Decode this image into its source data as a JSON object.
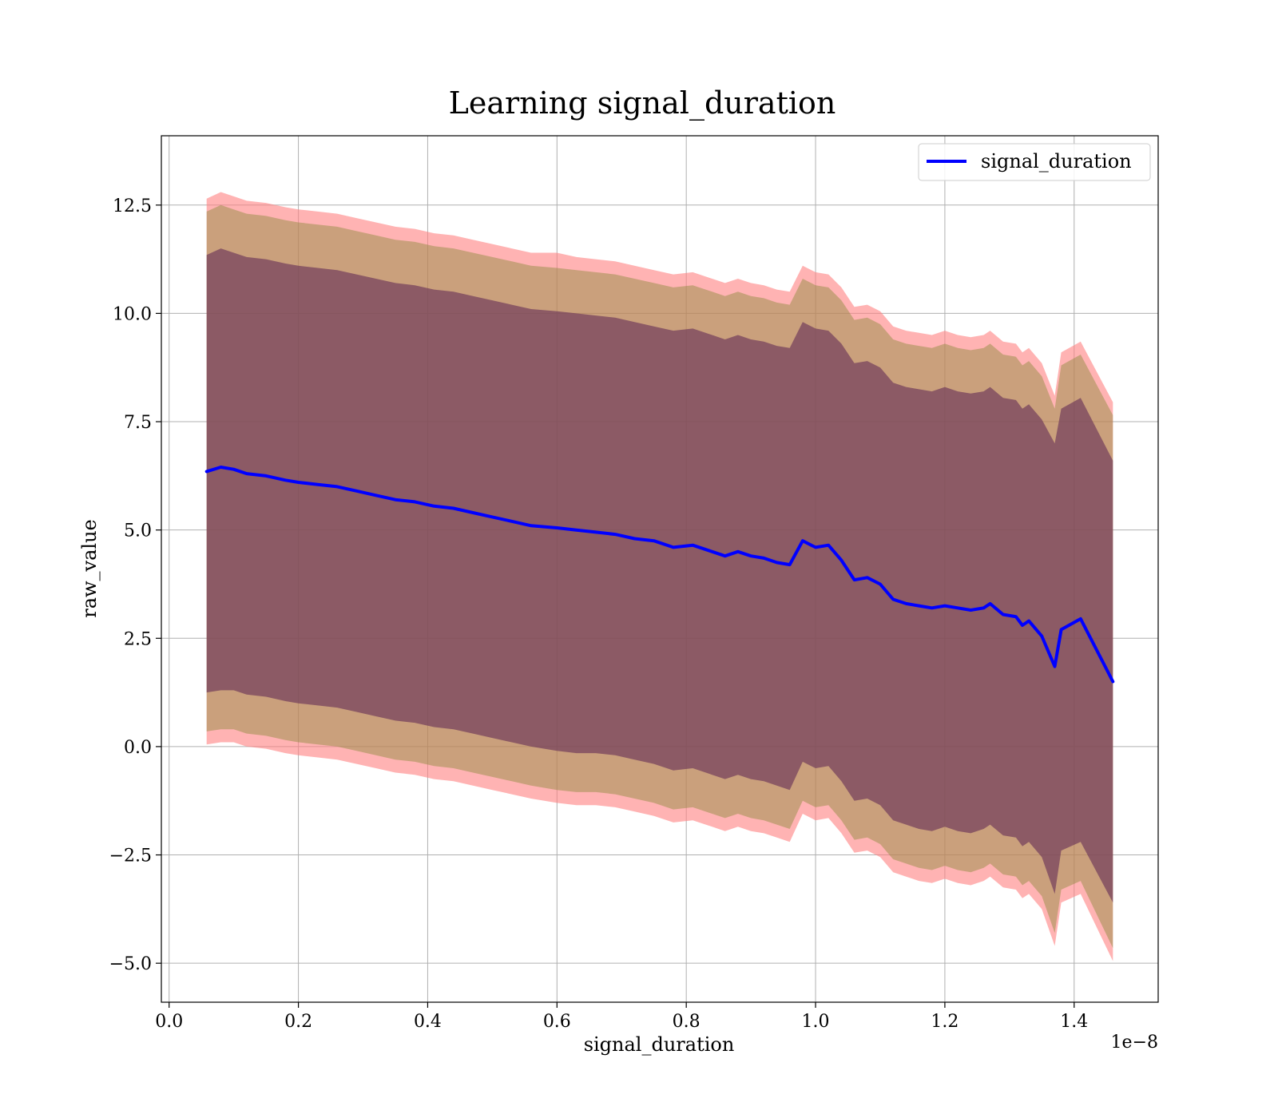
{
  "chart_data": {
    "type": "line",
    "title": "Learning signal_duration",
    "xlabel": "signal_duration",
    "ylabel": "raw_value",
    "x_offset_label": "1e−8",
    "xlim": [
      -0.012,
      1.53
    ],
    "ylim": [
      -5.9,
      14.1
    ],
    "x_ticks": [
      0.0,
      0.2,
      0.4,
      0.6,
      0.8,
      1.0,
      1.2,
      1.4
    ],
    "x_tick_labels": [
      "0.0",
      "0.2",
      "0.4",
      "0.6",
      "0.8",
      "1.0",
      "1.2",
      "1.4"
    ],
    "y_ticks": [
      12.5,
      10.0,
      7.5,
      5.0,
      2.5,
      0.0,
      -2.5,
      -5.0
    ],
    "y_tick_labels": [
      "12.5",
      "10.0",
      "7.5",
      "5.0",
      "2.5",
      "0.0",
      "−2.5",
      "−5.0"
    ],
    "grid": true,
    "legend_position": "top-right",
    "x": [
      0.058,
      0.08,
      0.1,
      0.12,
      0.15,
      0.18,
      0.2,
      0.23,
      0.26,
      0.29,
      0.32,
      0.35,
      0.38,
      0.41,
      0.44,
      0.47,
      0.5,
      0.53,
      0.56,
      0.6,
      0.63,
      0.66,
      0.69,
      0.72,
      0.75,
      0.78,
      0.81,
      0.84,
      0.86,
      0.88,
      0.9,
      0.92,
      0.94,
      0.96,
      0.98,
      1.0,
      1.02,
      1.04,
      1.06,
      1.08,
      1.1,
      1.12,
      1.14,
      1.16,
      1.18,
      1.2,
      1.22,
      1.24,
      1.26,
      1.27,
      1.29,
      1.31,
      1.32,
      1.33,
      1.35,
      1.37,
      1.38,
      1.41,
      1.46
    ],
    "series": [
      {
        "name": "signal_duration",
        "color": "#0000ff",
        "values": [
          6.35,
          6.45,
          6.4,
          6.3,
          6.25,
          6.15,
          6.1,
          6.05,
          6.0,
          5.9,
          5.8,
          5.7,
          5.65,
          5.55,
          5.5,
          5.4,
          5.3,
          5.2,
          5.1,
          5.05,
          5.0,
          4.95,
          4.9,
          4.8,
          4.75,
          4.6,
          4.65,
          4.5,
          4.4,
          4.5,
          4.4,
          4.35,
          4.25,
          4.2,
          4.75,
          4.6,
          4.65,
          4.3,
          3.85,
          3.9,
          3.75,
          3.4,
          3.3,
          3.25,
          3.2,
          3.25,
          3.2,
          3.15,
          3.2,
          3.3,
          3.05,
          3.0,
          2.8,
          2.9,
          2.55,
          1.85,
          2.7,
          2.95,
          1.5
        ]
      }
    ],
    "bands": [
      {
        "fill": "#ff8080",
        "opacity": 0.6,
        "upper": [
          12.65,
          12.8,
          12.7,
          12.6,
          12.55,
          12.45,
          12.4,
          12.35,
          12.3,
          12.2,
          12.1,
          12.0,
          11.95,
          11.85,
          11.8,
          11.7,
          11.6,
          11.5,
          11.4,
          11.4,
          11.3,
          11.25,
          11.2,
          11.1,
          11.0,
          10.9,
          10.95,
          10.8,
          10.7,
          10.8,
          10.7,
          10.65,
          10.55,
          10.5,
          11.1,
          10.95,
          10.9,
          10.6,
          10.15,
          10.2,
          10.05,
          9.7,
          9.6,
          9.55,
          9.5,
          9.6,
          9.5,
          9.45,
          9.5,
          9.6,
          9.35,
          9.3,
          9.1,
          9.2,
          8.85,
          8.1,
          9.1,
          9.35,
          7.95
        ],
        "lower": [
          0.05,
          0.1,
          0.1,
          0.0,
          -0.05,
          -0.15,
          -0.2,
          -0.25,
          -0.3,
          -0.4,
          -0.5,
          -0.6,
          -0.65,
          -0.75,
          -0.8,
          -0.9,
          -1.0,
          -1.1,
          -1.2,
          -1.3,
          -1.35,
          -1.35,
          -1.4,
          -1.5,
          -1.6,
          -1.75,
          -1.7,
          -1.85,
          -1.95,
          -1.85,
          -1.95,
          -2.0,
          -2.1,
          -2.2,
          -1.55,
          -1.7,
          -1.65,
          -2.0,
          -2.45,
          -2.4,
          -2.55,
          -2.9,
          -3.0,
          -3.1,
          -3.15,
          -3.05,
          -3.15,
          -3.2,
          -3.1,
          -3.0,
          -3.25,
          -3.3,
          -3.5,
          -3.4,
          -3.75,
          -4.6,
          -3.6,
          -3.4,
          -4.95
        ]
      },
      {
        "fill": "#8a8a3a",
        "opacity": 0.45,
        "upper": [
          12.35,
          12.5,
          12.4,
          12.3,
          12.25,
          12.15,
          12.1,
          12.05,
          12.0,
          11.9,
          11.8,
          11.7,
          11.65,
          11.55,
          11.5,
          11.4,
          11.3,
          11.2,
          11.1,
          11.05,
          11.0,
          10.95,
          10.9,
          10.8,
          10.7,
          10.6,
          10.65,
          10.5,
          10.4,
          10.5,
          10.4,
          10.35,
          10.25,
          10.2,
          10.8,
          10.65,
          10.6,
          10.3,
          9.85,
          9.9,
          9.75,
          9.4,
          9.3,
          9.25,
          9.2,
          9.3,
          9.2,
          9.15,
          9.2,
          9.3,
          9.05,
          9.0,
          8.8,
          8.9,
          8.55,
          7.8,
          8.8,
          9.05,
          7.65
        ],
        "lower": [
          0.35,
          0.4,
          0.4,
          0.3,
          0.25,
          0.15,
          0.1,
          0.05,
          0.0,
          -0.1,
          -0.2,
          -0.3,
          -0.35,
          -0.45,
          -0.5,
          -0.6,
          -0.7,
          -0.8,
          -0.9,
          -1.0,
          -1.05,
          -1.05,
          -1.1,
          -1.2,
          -1.3,
          -1.45,
          -1.4,
          -1.55,
          -1.65,
          -1.55,
          -1.65,
          -1.7,
          -1.8,
          -1.9,
          -1.25,
          -1.4,
          -1.35,
          -1.7,
          -2.15,
          -2.1,
          -2.25,
          -2.6,
          -2.7,
          -2.8,
          -2.85,
          -2.75,
          -2.85,
          -2.9,
          -2.8,
          -2.7,
          -2.95,
          -3.0,
          -3.2,
          -3.1,
          -3.45,
          -4.3,
          -3.3,
          -3.1,
          -4.65
        ]
      },
      {
        "fill": "#6e3a5a",
        "opacity": 0.68,
        "upper": [
          11.35,
          11.5,
          11.4,
          11.3,
          11.25,
          11.15,
          11.1,
          11.05,
          11.0,
          10.9,
          10.8,
          10.7,
          10.65,
          10.55,
          10.5,
          10.4,
          10.3,
          10.2,
          10.1,
          10.05,
          10.0,
          9.95,
          9.9,
          9.8,
          9.7,
          9.6,
          9.65,
          9.5,
          9.4,
          9.5,
          9.4,
          9.35,
          9.25,
          9.2,
          9.8,
          9.65,
          9.6,
          9.3,
          8.85,
          8.9,
          8.75,
          8.4,
          8.3,
          8.25,
          8.2,
          8.3,
          8.2,
          8.15,
          8.2,
          8.3,
          8.05,
          8.0,
          7.8,
          7.9,
          7.55,
          7.0,
          7.8,
          8.05,
          6.6
        ],
        "lower": [
          1.25,
          1.3,
          1.3,
          1.2,
          1.15,
          1.05,
          1.0,
          0.95,
          0.9,
          0.8,
          0.7,
          0.6,
          0.55,
          0.45,
          0.4,
          0.3,
          0.2,
          0.1,
          0.0,
          -0.1,
          -0.15,
          -0.15,
          -0.2,
          -0.3,
          -0.4,
          -0.55,
          -0.5,
          -0.65,
          -0.75,
          -0.65,
          -0.75,
          -0.8,
          -0.9,
          -1.0,
          -0.35,
          -0.5,
          -0.45,
          -0.8,
          -1.25,
          -1.2,
          -1.35,
          -1.7,
          -1.8,
          -1.9,
          -1.95,
          -1.85,
          -1.95,
          -2.0,
          -1.9,
          -1.8,
          -2.05,
          -2.1,
          -2.3,
          -2.2,
          -2.55,
          -3.4,
          -2.4,
          -2.2,
          -3.6
        ]
      }
    ]
  }
}
